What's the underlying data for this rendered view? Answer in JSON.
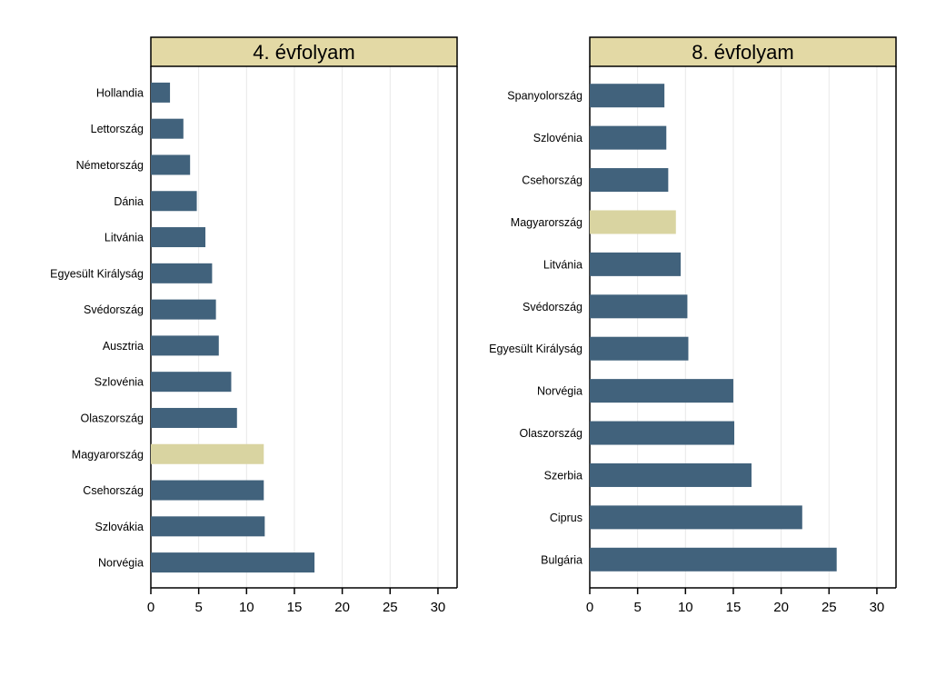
{
  "colors": {
    "bar": "#41627c",
    "highlight": "#d9d4a1",
    "header_bg": "#e3d9a5",
    "grid": "#e8e8e8",
    "axis": "#000000"
  },
  "chart_data": [
    {
      "type": "bar",
      "orientation": "horizontal",
      "title": "4. évfolyam",
      "categories": [
        "Hollandia",
        "Lettország",
        "Németország",
        "Dánia",
        "Litvánia",
        "Egyesült Királyság",
        "Svédország",
        "Ausztria",
        "Szlovénia",
        "Olaszország",
        "Magyarország",
        "Csehország",
        "Szlovákia",
        "Norvégia"
      ],
      "values": [
        2.0,
        3.4,
        4.1,
        4.8,
        5.7,
        6.4,
        6.8,
        7.1,
        8.4,
        9.0,
        11.8,
        11.8,
        11.9,
        17.1
      ],
      "highlight": "Magyarország",
      "xlim": [
        0,
        32
      ],
      "xticks": [
        0,
        5,
        10,
        15,
        20,
        25,
        30
      ],
      "grid": true
    },
    {
      "type": "bar",
      "orientation": "horizontal",
      "title": "8. évfolyam",
      "categories": [
        "Spanyolország",
        "Szlovénia",
        "Csehország",
        "Magyarország",
        "Litvánia",
        "Svédország",
        "Egyesült Királyság",
        "Norvégia",
        "Olaszország",
        "Szerbia",
        "Ciprus",
        "Bulgária"
      ],
      "values": [
        7.8,
        8.0,
        8.2,
        9.0,
        9.5,
        10.2,
        10.3,
        15.0,
        15.1,
        16.9,
        22.2,
        25.8
      ],
      "highlight": "Magyarország",
      "xlim": [
        0,
        32
      ],
      "xticks": [
        0,
        5,
        10,
        15,
        20,
        25,
        30
      ],
      "grid": true
    }
  ]
}
